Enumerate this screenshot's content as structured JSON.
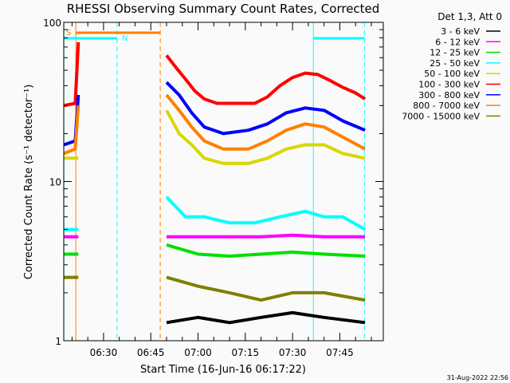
{
  "chart_data": {
    "type": "line",
    "title": "RHESSI Observing Summary Count Rates, Corrected",
    "xlabel": "Start Time (16-Jun-16 06:17:22)",
    "ylabel": "Corrected Count Rate (s⁻¹ detector⁻¹)",
    "x_units": "minutes after 06:00",
    "xlim": [
      17.37,
      118.8
    ],
    "ylim": [
      1,
      100
    ],
    "yscale": "log",
    "x_ticks": [
      {
        "t": 30,
        "label": "06:30"
      },
      {
        "t": 45,
        "label": "06:45"
      },
      {
        "t": 60,
        "label": "07:00"
      },
      {
        "t": 75,
        "label": "07:15"
      },
      {
        "t": 90,
        "label": "07:30"
      },
      {
        "t": 105,
        "label": "07:45"
      }
    ],
    "y_ticks": [
      {
        "v": 1,
        "label": "1"
      },
      {
        "v": 10,
        "label": "10"
      },
      {
        "v": 100,
        "label": "100"
      }
    ],
    "legend_title": "Det 1,3, Att 0",
    "legend_position": "right",
    "series": [
      {
        "name": "3 - 6 keV",
        "color": "#000000",
        "segments": [
          [
            [
              50,
              1.3
            ],
            [
              60,
              1.4
            ],
            [
              70,
              1.3
            ],
            [
              80,
              1.4
            ],
            [
              90,
              1.5
            ],
            [
              100,
              1.4
            ],
            [
              113,
              1.3
            ]
          ]
        ]
      },
      {
        "name": "6 - 12 keV",
        "color": "#ff00ff",
        "segments": [
          [
            [
              17.4,
              4.5
            ],
            [
              22,
              4.5
            ]
          ],
          [
            [
              50,
              4.5
            ],
            [
              60,
              4.5
            ],
            [
              70,
              4.5
            ],
            [
              80,
              4.5
            ],
            [
              90,
              4.6
            ],
            [
              100,
              4.5
            ],
            [
              113,
              4.5
            ]
          ]
        ]
      },
      {
        "name": "12 - 25 keV",
        "color": "#00e000",
        "segments": [
          [
            [
              17.4,
              3.5
            ],
            [
              22,
              3.5
            ]
          ],
          [
            [
              50,
              4.0
            ],
            [
              60,
              3.5
            ],
            [
              70,
              3.4
            ],
            [
              80,
              3.5
            ],
            [
              90,
              3.6
            ],
            [
              100,
              3.5
            ],
            [
              113,
              3.4
            ]
          ]
        ]
      },
      {
        "name": "25 - 50 keV",
        "color": "#00ffff",
        "segments": [
          [
            [
              17.4,
              5
            ],
            [
              22,
              5
            ]
          ],
          [
            [
              50,
              8
            ],
            [
              56,
              6
            ],
            [
              62,
              6
            ],
            [
              70,
              5.5
            ],
            [
              78,
              5.5
            ],
            [
              86,
              6
            ],
            [
              94,
              6.5
            ],
            [
              100,
              6
            ],
            [
              106,
              6
            ],
            [
              113,
              5
            ]
          ]
        ]
      },
      {
        "name": "50 - 100 keV",
        "color": "#d8d800",
        "segments": [
          [
            [
              17.4,
              14
            ],
            [
              22,
              14
            ]
          ],
          [
            [
              50,
              28
            ],
            [
              54,
              20
            ],
            [
              58,
              17
            ],
            [
              62,
              14
            ],
            [
              68,
              13
            ],
            [
              76,
              13
            ],
            [
              82,
              14
            ],
            [
              88,
              16
            ],
            [
              94,
              17
            ],
            [
              100,
              17
            ],
            [
              106,
              15
            ],
            [
              113,
              14
            ]
          ]
        ]
      },
      {
        "name": "100 - 300 keV",
        "color": "#ff0000",
        "segments": [
          [
            [
              17.4,
              30
            ],
            [
              21,
              31
            ],
            [
              22,
              75
            ]
          ],
          [
            [
              50,
              62
            ],
            [
              53,
              52
            ],
            [
              56,
              44
            ],
            [
              59,
              37
            ],
            [
              62,
              33
            ],
            [
              66,
              31
            ],
            [
              72,
              31
            ],
            [
              78,
              31
            ],
            [
              82,
              34
            ],
            [
              86,
              40
            ],
            [
              90,
              45
            ],
            [
              94,
              48
            ],
            [
              98,
              47
            ],
            [
              102,
              43
            ],
            [
              106,
              39
            ],
            [
              110,
              36
            ],
            [
              113,
              33
            ]
          ]
        ]
      },
      {
        "name": "300 - 800 keV",
        "color": "#0000ff",
        "segments": [
          [
            [
              17.4,
              17
            ],
            [
              21,
              18
            ],
            [
              22,
              35
            ]
          ],
          [
            [
              50,
              42
            ],
            [
              54,
              35
            ],
            [
              58,
              27
            ],
            [
              62,
              22
            ],
            [
              68,
              20
            ],
            [
              76,
              21
            ],
            [
              82,
              23
            ],
            [
              88,
              27
            ],
            [
              94,
              29
            ],
            [
              100,
              28
            ],
            [
              106,
              24
            ],
            [
              113,
              21
            ]
          ]
        ]
      },
      {
        "name": "800 - 7000 keV",
        "color": "#ff8000",
        "segments": [
          [
            [
              17.4,
              15
            ],
            [
              21,
              16
            ],
            [
              22,
              30
            ]
          ],
          [
            [
              50,
              35
            ],
            [
              54,
              28
            ],
            [
              58,
              22
            ],
            [
              62,
              18
            ],
            [
              68,
              16
            ],
            [
              76,
              16
            ],
            [
              82,
              18
            ],
            [
              88,
              21
            ],
            [
              94,
              23
            ],
            [
              100,
              22
            ],
            [
              106,
              19
            ],
            [
              113,
              16
            ]
          ]
        ]
      },
      {
        "name": "7000 - 15000 keV",
        "color": "#808000",
        "segments": [
          [
            [
              17.4,
              2.5
            ],
            [
              22,
              2.5
            ]
          ],
          [
            [
              50,
              2.5
            ],
            [
              60,
              2.2
            ],
            [
              70,
              2.0
            ],
            [
              80,
              1.8
            ],
            [
              90,
              2.0
            ],
            [
              100,
              2.0
            ],
            [
              113,
              1.8
            ]
          ]
        ]
      }
    ],
    "annotations": {
      "saa_label": "S",
      "night_label": "N",
      "saa_color": "#ff8000",
      "night_color": "#00ffff",
      "saa_bars": [
        [
          21.2,
          48
        ]
      ],
      "night_bars": [
        [
          17.4,
          34.3
        ],
        [
          96.6,
          112.8
        ]
      ],
      "solid_lines": [
        {
          "t": 17.4,
          "color": "#00ffff"
        },
        {
          "t": 21.2,
          "color": "#ff8000"
        },
        {
          "t": 96.6,
          "color": "#00ffff"
        }
      ],
      "dashed_lines": [
        {
          "t": 34.3,
          "color": "#00ffff"
        },
        {
          "t": 48,
          "color": "#ff8000"
        },
        {
          "t": 112.8,
          "color": "#00ffff"
        }
      ]
    }
  },
  "footer": {
    "timestamp": "31-Aug-2022 22:56"
  }
}
